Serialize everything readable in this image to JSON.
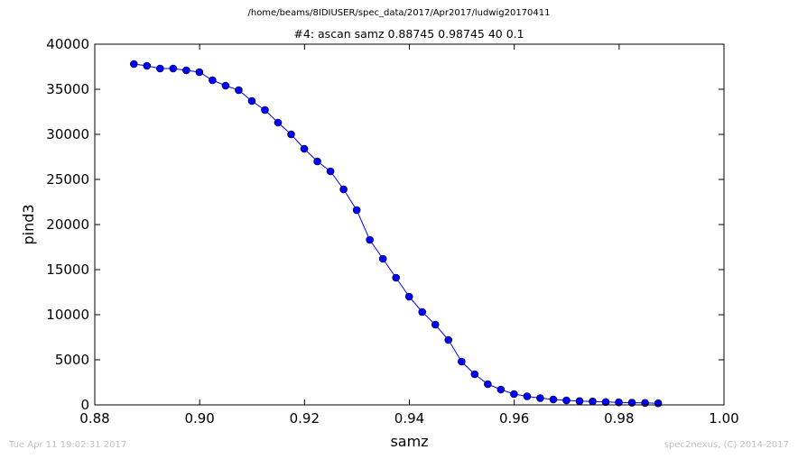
{
  "suptitle": "/home/beams/8IDIUSER/spec_data/2017/Apr2017/ludwig20170411",
  "footer": {
    "timestamp": "Tue Apr 11 19:02:31 2017",
    "credit": "spec2nexus, (C) 2014-2017"
  },
  "chart_data": {
    "type": "line",
    "title": "#4: ascan  samz 0.88745 0.98745  40 0.1",
    "xlabel": "samz",
    "ylabel": "pind3",
    "xlim": [
      0.88,
      1.0
    ],
    "ylim": [
      0,
      40000
    ],
    "xticks": [
      "0.88",
      "0.90",
      "0.92",
      "0.94",
      "0.96",
      "0.98",
      "1.00"
    ],
    "yticks": [
      "0",
      "5000",
      "10000",
      "15000",
      "20000",
      "25000",
      "30000",
      "35000",
      "40000"
    ],
    "grid": false,
    "line_color": "#0000ff",
    "marker": "circle",
    "series": [
      {
        "x": [
          0.88745,
          0.88995,
          0.89245,
          0.89495,
          0.89745,
          0.89995,
          0.90245,
          0.90495,
          0.90745,
          0.90995,
          0.91245,
          0.91495,
          0.91745,
          0.91995,
          0.92245,
          0.92495,
          0.92745,
          0.92995,
          0.93245,
          0.93495,
          0.93745,
          0.93995,
          0.94245,
          0.94495,
          0.94745,
          0.94995,
          0.95245,
          0.95495,
          0.95745,
          0.95995,
          0.96245,
          0.96495,
          0.96745,
          0.96995,
          0.97245,
          0.97495,
          0.97745,
          0.97995,
          0.98245,
          0.98495,
          0.98745
        ],
        "y": [
          37800,
          37600,
          37300,
          37300,
          37100,
          36900,
          36000,
          35400,
          34900,
          33700,
          32700,
          31300,
          30000,
          28400,
          27000,
          25900,
          23900,
          21600,
          18300,
          16200,
          14100,
          12000,
          10300,
          8900,
          7200,
          4800,
          3400,
          2300,
          1700,
          1200,
          950,
          750,
          600,
          500,
          420,
          380,
          320,
          280,
          240,
          220,
          180
        ]
      }
    ]
  }
}
